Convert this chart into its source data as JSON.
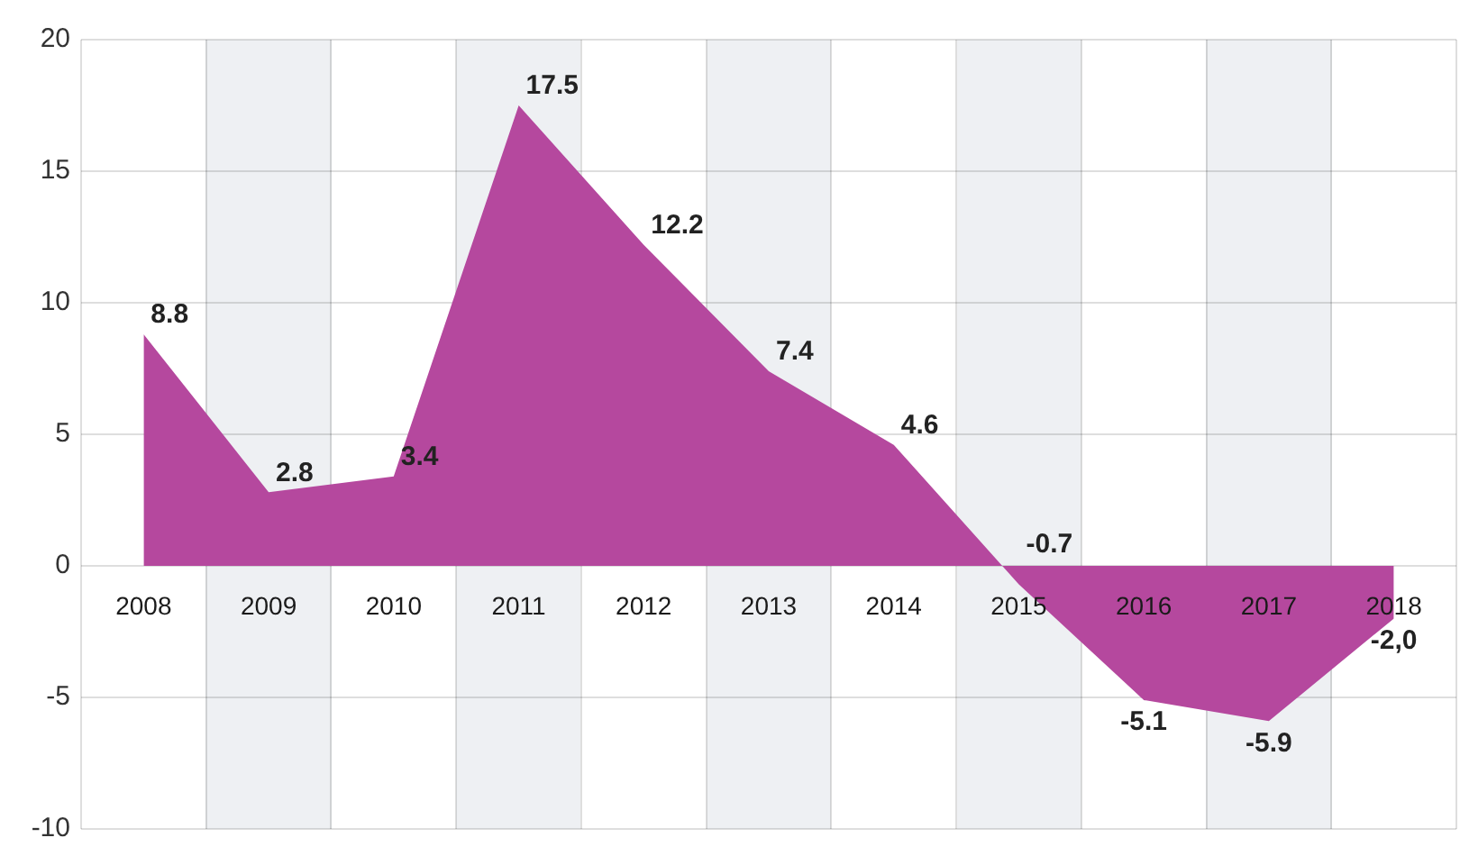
{
  "chart_data": {
    "type": "area",
    "categories": [
      "2008",
      "2009",
      "2010",
      "2011",
      "2012",
      "2013",
      "2014",
      "2015",
      "2016",
      "2017",
      "2018"
    ],
    "values": [
      8.8,
      2.8,
      3.4,
      17.5,
      12.2,
      7.4,
      4.6,
      -0.7,
      -5.1,
      -5.9,
      -2.0
    ],
    "value_labels": [
      "8.8",
      "2.8",
      "3.4",
      "17.5",
      "12.2",
      "7.4",
      "4.6",
      "-0.7",
      "-5.1",
      "-5.9",
      "-2,0"
    ],
    "color": "#b5489e",
    "ylim": [
      -10,
      20
    ],
    "yticks": [
      -10,
      -5,
      0,
      5,
      10,
      15,
      20
    ],
    "grid": true
  }
}
